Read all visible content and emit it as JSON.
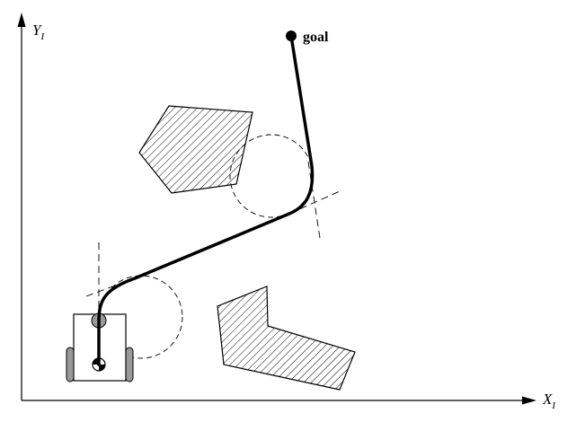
{
  "axes": {
    "y_label": {
      "main": "Y",
      "sub": "I"
    },
    "x_label": {
      "main": "X",
      "sub": "I"
    }
  },
  "goal": {
    "label": "goal"
  },
  "colors": {
    "stroke": "#000000",
    "robot_gray": "#999999",
    "background": "#ffffff"
  },
  "icons": {
    "robot": "differential-drive-robot-icon",
    "obstacle": "hatched-polygon"
  }
}
